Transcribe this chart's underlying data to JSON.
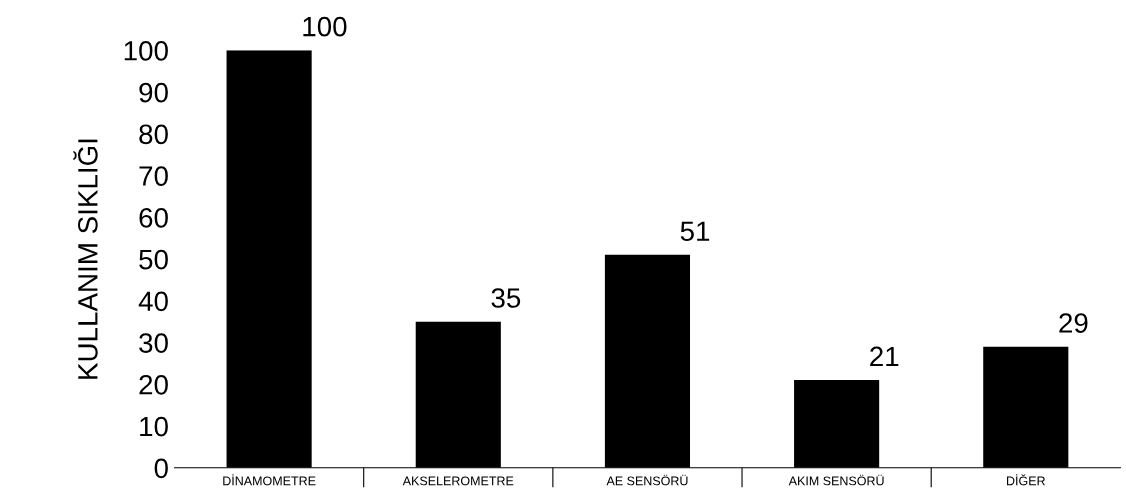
{
  "chart_data": {
    "type": "bar",
    "ylabel": "KULLANIM SIKLIĞI",
    "categories": [
      "DİNAMOMETRE",
      "AKSELEROMETRE",
      "AE SENSÖRÜ",
      "AKIM SENSÖRÜ",
      "DİĞER"
    ],
    "values": [
      100,
      35,
      51,
      21,
      29
    ],
    "color": "#000000",
    "ylim": [
      0,
      100
    ],
    "yticks": [
      0,
      10,
      20,
      30,
      40,
      50,
      60,
      70,
      80,
      90,
      100
    ],
    "data_labels": true,
    "grid": false,
    "legend": false
  }
}
